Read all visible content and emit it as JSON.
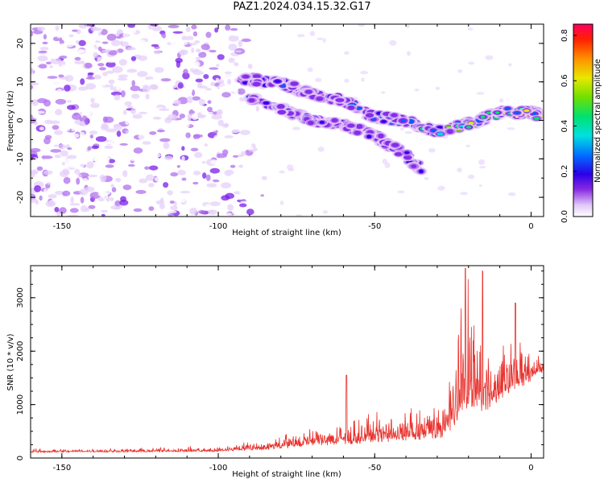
{
  "title": "PAZ1.2024.034.15.32.G17",
  "chart_data": [
    {
      "type": "heatmap",
      "title": "PAZ1.2024.034.15.32.G17",
      "xlabel": "Height of straight line (km)",
      "ylabel": "Frequency (Hz)",
      "xlim": [
        -160,
        4
      ],
      "ylim": [
        -25,
        25
      ],
      "xticks": [
        -150,
        -100,
        -50,
        0
      ],
      "yticks": [
        -20,
        -10,
        0,
        10,
        20
      ],
      "colorbar": {
        "label": "Normalized spectral amplitude",
        "range": [
          0,
          0.85
        ],
        "ticks": [
          0.0,
          0.2,
          0.4,
          0.6,
          0.8
        ]
      },
      "ridge": {
        "x": [
          -93,
          -80,
          -70,
          -60,
          -50,
          -40,
          -30,
          -20,
          -10,
          0,
          4
        ],
        "y": [
          11,
          9.5,
          7,
          5,
          1,
          0,
          -3,
          -1,
          2,
          2,
          1
        ]
      },
      "branch": {
        "x": [
          -90,
          -80,
          -70,
          -60,
          -50,
          -40,
          -35
        ],
        "y": [
          6,
          3,
          0,
          -1,
          -4,
          -9,
          -13
        ]
      }
    },
    {
      "type": "line",
      "xlabel": "Height of straight line (km)",
      "ylabel": "SNR (10 * v/v)",
      "xlim": [
        -160,
        4
      ],
      "ylim": [
        0,
        3600
      ],
      "xticks": [
        -150,
        -100,
        -50,
        0
      ],
      "yticks": [
        0,
        1000,
        2000,
        3000
      ],
      "color": "#e8312c",
      "envelope": {
        "x": [
          -160,
          -100,
          -85,
          -75,
          -65,
          -55,
          -45,
          -35,
          -28,
          -25,
          -22,
          -20,
          -18,
          -15,
          -12,
          -8,
          -5,
          -2,
          0,
          4
        ],
        "base": [
          120,
          140,
          200,
          280,
          330,
          380,
          430,
          480,
          560,
          900,
          1300,
          1500,
          1400,
          1200,
          1250,
          1400,
          1500,
          1550,
          1600,
          1700
        ],
        "amp": [
          50,
          70,
          150,
          250,
          300,
          380,
          420,
          450,
          600,
          1100,
          1600,
          1800,
          1700,
          1200,
          900,
          800,
          700,
          650,
          500,
          300
        ]
      },
      "spikes": [
        {
          "x": -59,
          "y": 1550
        },
        {
          "x": -21,
          "y": 3550
        },
        {
          "x": -15.5,
          "y": 3500
        },
        {
          "x": -5,
          "y": 2900
        }
      ]
    }
  ]
}
